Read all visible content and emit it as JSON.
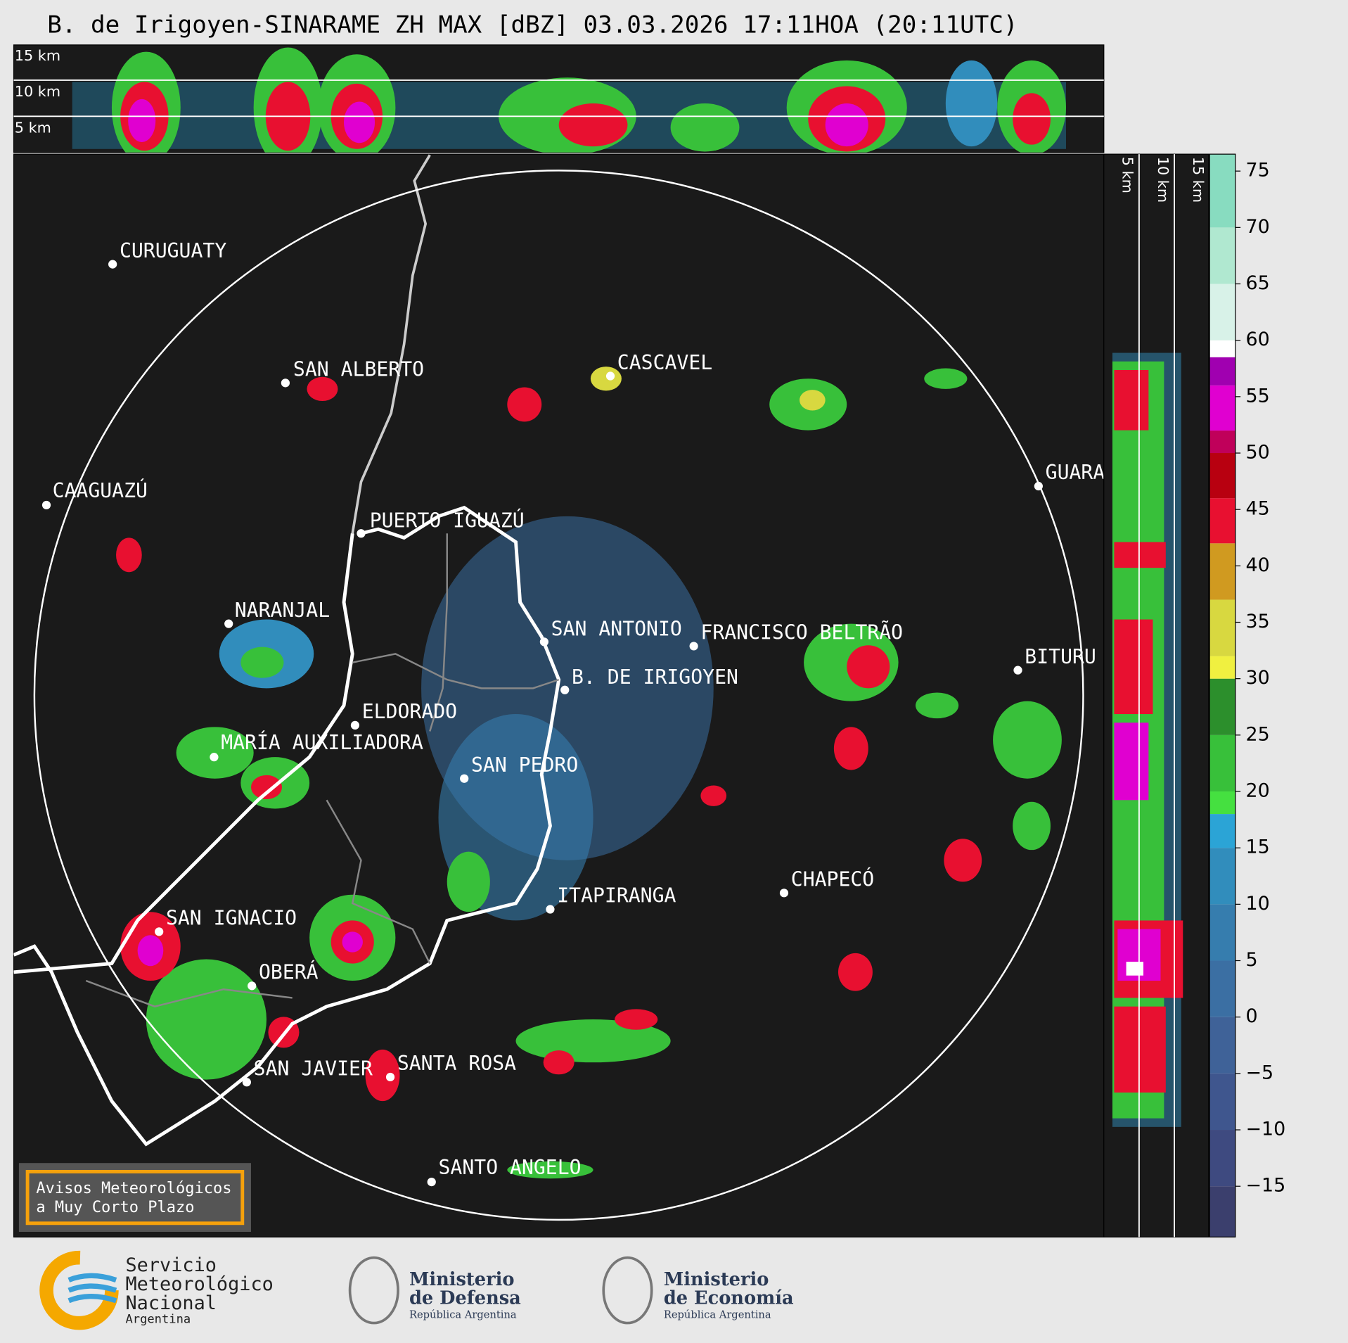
{
  "title": "B. de Irigoyen-SINARAME ZH MAX [dBZ] 03.03.2026 17:11HOA (20:11UTC)",
  "height_labels": [
    "15 km",
    "10 km",
    "5 km"
  ],
  "side_height_labels": [
    "5 km",
    "10 km",
    "15 km"
  ],
  "cities": [
    "CURUGUATY",
    "SAN ALBERTO",
    "CASCAVEL",
    "CAAGUAZÚ",
    "GUARA",
    "PUERTO IGUAZÚ",
    "NARANJAL",
    "SAN ANTONIO",
    "FRANCISCO BELTRÃO",
    "BITURU",
    "B. DE IRIGOYEN",
    "ELDORADO",
    "MARÍA AUXILIADORA",
    "SAN PEDRO",
    "CHAPECÓ",
    "ITAPIRANGA",
    "SAN IGNACIO",
    "OBERÁ",
    "SAN JAVIER",
    "SANTA ROSA",
    "SANTO ANGELO"
  ],
  "colorbar": {
    "vlim": [
      -19.5,
      76.5
    ],
    "ticks": [
      75,
      70,
      65,
      60,
      55,
      50,
      45,
      40,
      35,
      30,
      25,
      20,
      15,
      10,
      5,
      0,
      {
        "value": -5,
        "label": "−5"
      },
      {
        "value": -10,
        "label": "−10"
      },
      {
        "value": -15,
        "label": "−15"
      }
    ],
    "bands": [
      {
        "from": -19.5,
        "to": -15,
        "color": "#3b3f6d"
      },
      {
        "from": -15,
        "to": -10,
        "color": "#3e4a80"
      },
      {
        "from": -10,
        "to": -5,
        "color": "#3f568e"
      },
      {
        "from": -5,
        "to": 0,
        "color": "#3f6298"
      },
      {
        "from": 0,
        "to": 5,
        "color": "#3b6fa3"
      },
      {
        "from": 5,
        "to": 10,
        "color": "#367dae"
      },
      {
        "from": 10,
        "to": 15,
        "color": "#318dbc"
      },
      {
        "from": 15,
        "to": 18,
        "color": "#2ba4d6"
      },
      {
        "from": 18,
        "to": 20,
        "color": "#45e040"
      },
      {
        "from": 20,
        "to": 25,
        "color": "#38c03a"
      },
      {
        "from": 25,
        "to": 30,
        "color": "#2c8f2c"
      },
      {
        "from": 30,
        "to": 32,
        "color": "#f0f040"
      },
      {
        "from": 32,
        "to": 37,
        "color": "#d8d840"
      },
      {
        "from": 37,
        "to": 42,
        "color": "#d09a20"
      },
      {
        "from": 42,
        "to": 46,
        "color": "#e81030"
      },
      {
        "from": 46,
        "to": 50,
        "color": "#b80010"
      },
      {
        "from": 50,
        "to": 52,
        "color": "#c0005a"
      },
      {
        "from": 52,
        "to": 56,
        "color": "#e000d0"
      },
      {
        "from": 56,
        "to": 58.5,
        "color": "#a000b0"
      },
      {
        "from": 58.5,
        "to": 60,
        "color": "#ffffff"
      },
      {
        "from": 60,
        "to": 65,
        "color": "#d8f2e8"
      },
      {
        "from": 65,
        "to": 70,
        "color": "#b0e8d0"
      },
      {
        "from": 70,
        "to": 76.5,
        "color": "#88dcc0"
      }
    ]
  },
  "warning_box": [
    "Avisos Meteorológicos",
    "a Muy Corto Plazo"
  ],
  "logos": {
    "smn": [
      "Servicio",
      "Meteorológico",
      "Nacional",
      "Argentina"
    ],
    "defensa": [
      "Ministerio",
      "de Defensa",
      "República Argentina"
    ],
    "economia": [
      "Ministerio",
      "de Economía",
      "República Argentina"
    ]
  }
}
